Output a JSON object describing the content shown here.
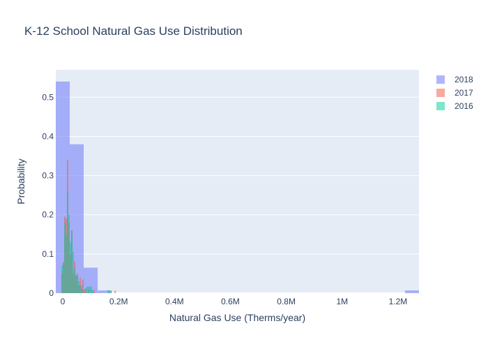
{
  "chart_data": {
    "type": "histogram",
    "title": "K-12 School Natural Gas Use Distribution",
    "xlabel": "Natural Gas Use (Therms/year)",
    "ylabel": "Probability",
    "xlim": [
      -25000,
      1275000
    ],
    "ylim": [
      0,
      0.57
    ],
    "x_ticks": [
      {
        "value": 0,
        "label": "0"
      },
      {
        "value": 200000,
        "label": "0.2M"
      },
      {
        "value": 400000,
        "label": "0.4M"
      },
      {
        "value": 600000,
        "label": "0.6M"
      },
      {
        "value": 800000,
        "label": "0.8M"
      },
      {
        "value": 1000000,
        "label": "1M"
      },
      {
        "value": 1200000,
        "label": "1.2M"
      }
    ],
    "y_ticks": [
      {
        "value": 0,
        "label": "0"
      },
      {
        "value": 0.1,
        "label": "0.1"
      },
      {
        "value": 0.2,
        "label": "0.2"
      },
      {
        "value": 0.3,
        "label": "0.3"
      },
      {
        "value": 0.4,
        "label": "0.4"
      },
      {
        "value": 0.5,
        "label": "0.5"
      }
    ],
    "grid": true,
    "legend_position": "top-right",
    "series": [
      {
        "name": "2018",
        "color": "#636efa",
        "bins": [
          {
            "x0": -25000,
            "x1": 25000,
            "p": 0.54
          },
          {
            "x0": 25000,
            "x1": 75000,
            "p": 0.38
          },
          {
            "x0": 75000,
            "x1": 125000,
            "p": 0.065
          },
          {
            "x0": 125000,
            "x1": 175000,
            "p": 0.007
          },
          {
            "x0": 1225000,
            "x1": 1275000,
            "p": 0.007
          }
        ]
      },
      {
        "name": "2017",
        "color": "#ef553b",
        "bins": [
          {
            "x0": -5000,
            "x1": 0,
            "p": 0.05
          },
          {
            "x0": 0,
            "x1": 5000,
            "p": 0.08
          },
          {
            "x0": 5000,
            "x1": 10000,
            "p": 0.195
          },
          {
            "x0": 10000,
            "x1": 15000,
            "p": 0.19
          },
          {
            "x0": 15000,
            "x1": 20000,
            "p": 0.34
          },
          {
            "x0": 20000,
            "x1": 25000,
            "p": 0.18
          },
          {
            "x0": 25000,
            "x1": 30000,
            "p": 0.1
          },
          {
            "x0": 30000,
            "x1": 35000,
            "p": 0.16
          },
          {
            "x0": 35000,
            "x1": 40000,
            "p": 0.05
          },
          {
            "x0": 40000,
            "x1": 45000,
            "p": 0.08
          },
          {
            "x0": 45000,
            "x1": 50000,
            "p": 0.045
          },
          {
            "x0": 50000,
            "x1": 55000,
            "p": 0.05
          },
          {
            "x0": 55000,
            "x1": 60000,
            "p": 0.02
          },
          {
            "x0": 60000,
            "x1": 65000,
            "p": 0.04
          },
          {
            "x0": 65000,
            "x1": 70000,
            "p": 0.02
          },
          {
            "x0": 70000,
            "x1": 75000,
            "p": 0.035
          },
          {
            "x0": 75000,
            "x1": 80000,
            "p": 0.01
          },
          {
            "x0": 80000,
            "x1": 85000,
            "p": 0.012
          },
          {
            "x0": 90000,
            "x1": 95000,
            "p": 0.01
          },
          {
            "x0": 100000,
            "x1": 105000,
            "p": 0.008
          },
          {
            "x0": 110000,
            "x1": 115000,
            "p": 0.008
          },
          {
            "x0": 165000,
            "x1": 170000,
            "p": 0.007
          },
          {
            "x0": 185000,
            "x1": 190000,
            "p": 0.007
          }
        ]
      },
      {
        "name": "2016",
        "color": "#00cc96",
        "bins": [
          {
            "x0": -5000,
            "x1": 0,
            "p": 0.07
          },
          {
            "x0": 0,
            "x1": 5000,
            "p": 0.075
          },
          {
            "x0": 5000,
            "x1": 10000,
            "p": 0.18
          },
          {
            "x0": 10000,
            "x1": 15000,
            "p": 0.15
          },
          {
            "x0": 15000,
            "x1": 20000,
            "p": 0.26
          },
          {
            "x0": 20000,
            "x1": 25000,
            "p": 0.2
          },
          {
            "x0": 25000,
            "x1": 30000,
            "p": 0.13
          },
          {
            "x0": 30000,
            "x1": 35000,
            "p": 0.16
          },
          {
            "x0": 35000,
            "x1": 40000,
            "p": 0.105
          },
          {
            "x0": 40000,
            "x1": 45000,
            "p": 0.06
          },
          {
            "x0": 45000,
            "x1": 50000,
            "p": 0.045
          },
          {
            "x0": 50000,
            "x1": 55000,
            "p": 0.045
          },
          {
            "x0": 55000,
            "x1": 60000,
            "p": 0.03
          },
          {
            "x0": 60000,
            "x1": 65000,
            "p": 0.02
          },
          {
            "x0": 65000,
            "x1": 70000,
            "p": 0.01
          },
          {
            "x0": 70000,
            "x1": 75000,
            "p": 0.008
          },
          {
            "x0": 80000,
            "x1": 85000,
            "p": 0.012
          },
          {
            "x0": 85000,
            "x1": 90000,
            "p": 0.017
          },
          {
            "x0": 90000,
            "x1": 95000,
            "p": 0.017
          },
          {
            "x0": 95000,
            "x1": 100000,
            "p": 0.017
          },
          {
            "x0": 100000,
            "x1": 105000,
            "p": 0.017
          },
          {
            "x0": 105000,
            "x1": 110000,
            "p": 0.008
          },
          {
            "x0": 160000,
            "x1": 165000,
            "p": 0.008
          },
          {
            "x0": 170000,
            "x1": 175000,
            "p": 0.007
          }
        ]
      }
    ]
  }
}
